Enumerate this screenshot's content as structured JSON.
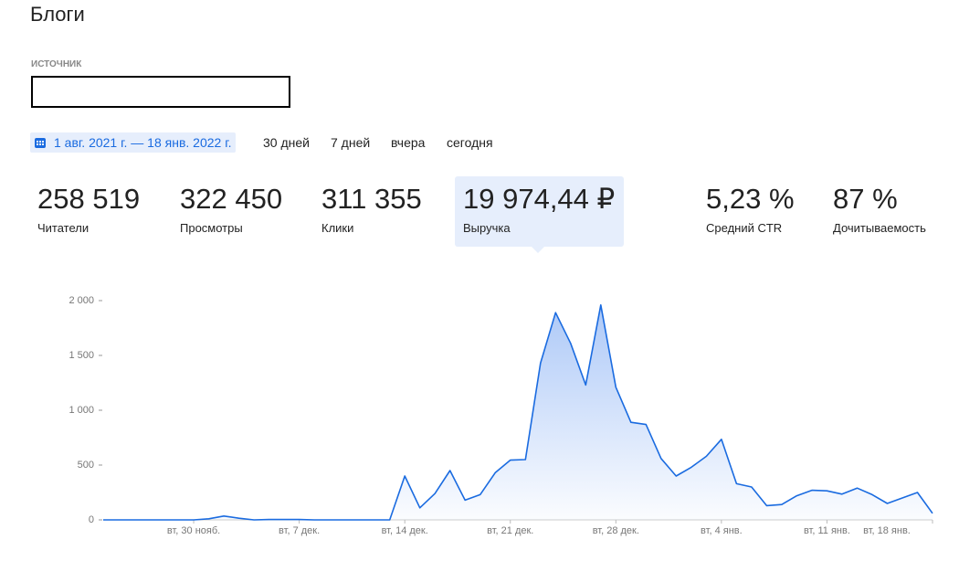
{
  "header": {
    "title": "Блоги"
  },
  "filter": {
    "label": "ИСТОЧНИК"
  },
  "date_range": "1 авг. 2021 г. — 18 янв. 2022 г.",
  "periods": [
    "30 дней",
    "7 дней",
    "вчера",
    "сегодня"
  ],
  "metrics": [
    {
      "value": "258 519",
      "label": "Читатели"
    },
    {
      "value": "322 450",
      "label": "Просмотры"
    },
    {
      "value": "311 355",
      "label": "Клики"
    },
    {
      "value": "19 974,44 ₽",
      "label": "Выручка"
    },
    {
      "value": "5,23 %",
      "label": "Средний CTR"
    },
    {
      "value": "87 %",
      "label": "Дочитываемость"
    }
  ],
  "chart_data": {
    "type": "area",
    "color": "#1a6be0",
    "categories": [
      null,
      null,
      null,
      null,
      null,
      null,
      "вт, 30 нояб.",
      null,
      null,
      null,
      null,
      null,
      null,
      "вт, 7 дек.",
      null,
      null,
      null,
      null,
      null,
      null,
      "вт, 14 дек.",
      null,
      null,
      null,
      null,
      null,
      null,
      "вт, 21 дек.",
      null,
      null,
      null,
      null,
      null,
      null,
      "вт, 28 дек.",
      null,
      null,
      null,
      null,
      null,
      null,
      "вт, 4 янв.",
      null,
      null,
      null,
      null,
      null,
      null,
      "вт, 11 янв.",
      null,
      null,
      null,
      null,
      null,
      null,
      "вт, 18 янв."
    ],
    "values": [
      0,
      0,
      0,
      0,
      0,
      0,
      0,
      10,
      35,
      15,
      0,
      3,
      3,
      3,
      0,
      0,
      0,
      0,
      0,
      0,
      400,
      110,
      240,
      450,
      180,
      230,
      430,
      545,
      550,
      1430,
      1890,
      1610,
      1230,
      1960,
      1210,
      890,
      870,
      560,
      400,
      480,
      580,
      735,
      330,
      300,
      130,
      140,
      220,
      270,
      265,
      235,
      290,
      230,
      150,
      200,
      250,
      60
    ],
    "ylim": [
      0,
      2000
    ],
    "yticks": [
      0,
      {
        "value": 500,
        "label": "500"
      },
      {
        "value": 1000,
        "label": "1 000"
      },
      {
        "value": 1500,
        "label": "1 500"
      },
      {
        "value": 2000,
        "label": "2 000"
      }
    ]
  }
}
